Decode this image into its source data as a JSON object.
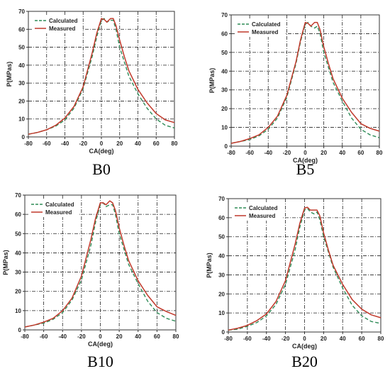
{
  "chart_data": [
    {
      "type": "line",
      "caption": "B0",
      "xlabel": "CA(deg)",
      "ylabel": "P(MPas)",
      "xlim": [
        -80,
        80
      ],
      "ylim": [
        0,
        70
      ],
      "xticks": [
        -80,
        -60,
        -40,
        -20,
        0,
        20,
        40,
        60,
        80
      ],
      "yticks": [
        0,
        10,
        20,
        30,
        40,
        50,
        60,
        70
      ],
      "grid": true,
      "legend_position": "top-left",
      "series": [
        {
          "name": "Calculated",
          "color": "#2e8b57",
          "dash": true,
          "x": [
            -80,
            -70,
            -60,
            -50,
            -40,
            -30,
            -20,
            -10,
            -5,
            0,
            3,
            6,
            10,
            13,
            16,
            20,
            25,
            30,
            40,
            50,
            60,
            70,
            80
          ],
          "y": [
            1.5,
            2.5,
            4,
            6,
            9.5,
            16,
            27,
            45,
            56,
            65,
            66,
            64,
            65,
            65,
            60,
            50,
            42,
            34,
            24,
            16,
            10,
            6.5,
            5
          ]
        },
        {
          "name": "Measured",
          "color": "#c0392b",
          "dash": false,
          "x": [
            -80,
            -70,
            -60,
            -50,
            -40,
            -30,
            -20,
            -10,
            -5,
            0,
            3,
            6,
            10,
            13,
            16,
            20,
            25,
            30,
            40,
            50,
            60,
            70,
            80
          ],
          "y": [
            1.5,
            2.5,
            4,
            6.5,
            10.5,
            17,
            28,
            47,
            58,
            66,
            65.5,
            64,
            66,
            66,
            62,
            54,
            45,
            37,
            26.5,
            19,
            13,
            9.5,
            8
          ]
        }
      ]
    },
    {
      "type": "line",
      "caption": "B5",
      "xlabel": "CA(deg)",
      "ylabel": "P(MPas)",
      "xlim": [
        -80,
        80
      ],
      "ylim": [
        0,
        70
      ],
      "xticks": [
        -80,
        -60,
        -40,
        -20,
        0,
        20,
        40,
        60,
        80
      ],
      "yticks": [
        0,
        10,
        20,
        30,
        40,
        50,
        60,
        70
      ],
      "grid": true,
      "legend_position": "top-left",
      "series": [
        {
          "name": "Calculated",
          "color": "#2e8b57",
          "dash": true,
          "x": [
            -80,
            -70,
            -60,
            -50,
            -40,
            -30,
            -20,
            -10,
            -5,
            0,
            3,
            6,
            10,
            13,
            16,
            20,
            25,
            30,
            40,
            50,
            60,
            70,
            80
          ],
          "y": [
            1.5,
            2.5,
            3.5,
            5.5,
            9,
            15,
            26,
            44,
            56,
            65,
            66,
            64,
            63,
            64,
            60,
            50,
            42,
            34,
            24,
            15,
            9,
            6,
            4.5
          ]
        },
        {
          "name": "Measured",
          "color": "#c0392b",
          "dash": false,
          "x": [
            -80,
            -70,
            -60,
            -50,
            -40,
            -30,
            -20,
            -10,
            -5,
            0,
            3,
            6,
            10,
            13,
            16,
            20,
            25,
            30,
            40,
            50,
            60,
            70,
            80
          ],
          "y": [
            1.5,
            2.5,
            4,
            6,
            10,
            16,
            27,
            45,
            57,
            66,
            65.5,
            64,
            66,
            66,
            62,
            53,
            44,
            36,
            25.5,
            18,
            12,
            9.5,
            8
          ]
        }
      ]
    },
    {
      "type": "line",
      "caption": "B10",
      "xlabel": "CA(deg)",
      "ylabel": "P(MPas)",
      "xlim": [
        -80,
        80
      ],
      "ylim": [
        0,
        70
      ],
      "xticks": [
        -80,
        -60,
        -40,
        -20,
        0,
        20,
        40,
        60,
        80
      ],
      "yticks": [
        0,
        10,
        20,
        30,
        40,
        50,
        60,
        70
      ],
      "grid": true,
      "legend_position": "top-left",
      "series": [
        {
          "name": "Calculated",
          "color": "#2e8b57",
          "dash": true,
          "x": [
            -80,
            -70,
            -60,
            -50,
            -40,
            -30,
            -20,
            -10,
            -5,
            0,
            3,
            6,
            10,
            13,
            16,
            20,
            25,
            30,
            40,
            50,
            60,
            70,
            80
          ],
          "y": [
            1.5,
            2.5,
            3.5,
            5.5,
            9,
            15.5,
            26,
            44,
            56,
            65,
            66,
            64,
            65,
            65,
            60,
            50,
            42,
            34,
            24,
            15,
            9,
            6,
            4.5
          ]
        },
        {
          "name": "Measured",
          "color": "#c0392b",
          "dash": false,
          "x": [
            -80,
            -70,
            -60,
            -50,
            -40,
            -30,
            -20,
            -10,
            -5,
            0,
            3,
            6,
            10,
            13,
            16,
            20,
            25,
            30,
            40,
            50,
            60,
            70,
            80
          ],
          "y": [
            1.5,
            2.5,
            4,
            6,
            10,
            16.5,
            28,
            47,
            58,
            66,
            66,
            65,
            67,
            66,
            62,
            53,
            44,
            36,
            25.5,
            18,
            12,
            9.5,
            7.5
          ]
        }
      ]
    },
    {
      "type": "line",
      "caption": "B20",
      "xlabel": "CA(deg)",
      "ylabel": "P(MPas)",
      "xlim": [
        -80,
        80
      ],
      "ylim": [
        0,
        70
      ],
      "xticks": [
        -80,
        -60,
        -40,
        -20,
        0,
        20,
        40,
        60,
        80
      ],
      "yticks": [
        0,
        10,
        20,
        30,
        40,
        50,
        60,
        70
      ],
      "grid": true,
      "legend_position": "top-left",
      "series": [
        {
          "name": "Calculated",
          "color": "#2e8b57",
          "dash": true,
          "x": [
            -80,
            -70,
            -60,
            -50,
            -40,
            -30,
            -20,
            -10,
            -5,
            0,
            3,
            6,
            10,
            13,
            16,
            20,
            25,
            30,
            40,
            50,
            60,
            70,
            80
          ],
          "y": [
            1,
            1.5,
            3,
            5,
            8.5,
            14.5,
            25,
            43,
            55,
            64,
            65,
            63,
            62,
            63,
            59,
            50,
            42,
            34,
            23,
            14,
            8.5,
            5.5,
            4.5
          ]
        },
        {
          "name": "Measured",
          "color": "#c0392b",
          "dash": false,
          "x": [
            -80,
            -70,
            -60,
            -50,
            -40,
            -30,
            -20,
            -10,
            -5,
            0,
            3,
            6,
            10,
            13,
            16,
            20,
            25,
            30,
            40,
            50,
            60,
            70,
            80
          ],
          "y": [
            1,
            2,
            3.5,
            6,
            9.5,
            16,
            27,
            46,
            57,
            65,
            65.5,
            64,
            64,
            64,
            61,
            52,
            43,
            35,
            25,
            17,
            12,
            9,
            7.5
          ]
        }
      ]
    }
  ]
}
